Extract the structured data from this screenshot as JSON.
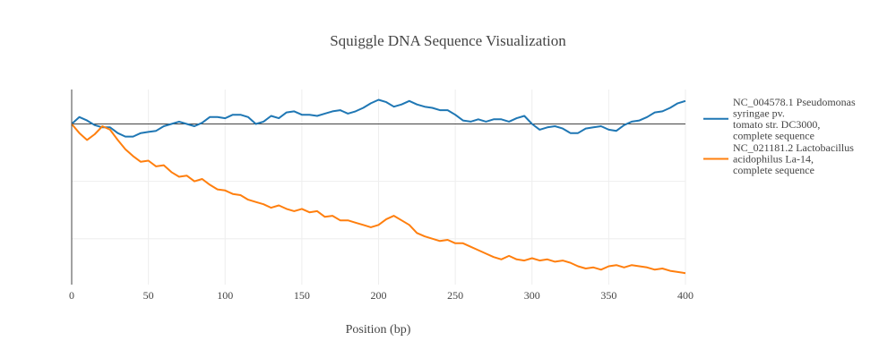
{
  "chart_data": {
    "type": "line",
    "title": "Squiggle DNA Sequence Visualization",
    "xlabel": "Position (bp)",
    "ylabel": "",
    "xlim": [
      0,
      400
    ],
    "ylim": [
      -140,
      30
    ],
    "x_ticks": [
      0,
      50,
      100,
      150,
      200,
      250,
      300,
      350,
      400
    ],
    "y_gridlines": [
      0,
      -50,
      -100
    ],
    "grid": true,
    "zero_line": true,
    "legend_position": "right",
    "series": [
      {
        "name": "NC_004578.1 Pseudomonas syringae pv. tomato str. DC3000, complete sequence",
        "legend_lines": [
          "NC_004578.1 Pseudomonas",
          "syringae pv.",
          "tomato str. DC3000,",
          "complete sequence"
        ],
        "color": "#1f77b4",
        "points": [
          [
            0,
            0
          ],
          [
            5,
            6
          ],
          [
            10,
            3
          ],
          [
            15,
            -1
          ],
          [
            20,
            -3
          ],
          [
            25,
            -3
          ],
          [
            30,
            -8
          ],
          [
            35,
            -11
          ],
          [
            40,
            -11
          ],
          [
            45,
            -8
          ],
          [
            50,
            -7
          ],
          [
            55,
            -6
          ],
          [
            60,
            -2
          ],
          [
            65,
            0
          ],
          [
            70,
            2
          ],
          [
            75,
            0
          ],
          [
            80,
            -2
          ],
          [
            85,
            1
          ],
          [
            90,
            6
          ],
          [
            95,
            6
          ],
          [
            100,
            5
          ],
          [
            105,
            8
          ],
          [
            110,
            8
          ],
          [
            115,
            6
          ],
          [
            120,
            0
          ],
          [
            125,
            2
          ],
          [
            130,
            7
          ],
          [
            135,
            5
          ],
          [
            140,
            10
          ],
          [
            145,
            11
          ],
          [
            150,
            8
          ],
          [
            155,
            8
          ],
          [
            160,
            7
          ],
          [
            165,
            9
          ],
          [
            170,
            11
          ],
          [
            175,
            12
          ],
          [
            180,
            9
          ],
          [
            185,
            11
          ],
          [
            190,
            14
          ],
          [
            195,
            18
          ],
          [
            200,
            21
          ],
          [
            205,
            19
          ],
          [
            210,
            15
          ],
          [
            215,
            17
          ],
          [
            220,
            20
          ],
          [
            225,
            17
          ],
          [
            230,
            15
          ],
          [
            235,
            14
          ],
          [
            240,
            12
          ],
          [
            245,
            12
          ],
          [
            250,
            8
          ],
          [
            255,
            3
          ],
          [
            260,
            2
          ],
          [
            265,
            4
          ],
          [
            270,
            2
          ],
          [
            275,
            4
          ],
          [
            280,
            4
          ],
          [
            285,
            2
          ],
          [
            290,
            5
          ],
          [
            295,
            7
          ],
          [
            300,
            0
          ],
          [
            305,
            -5
          ],
          [
            310,
            -3
          ],
          [
            315,
            -2
          ],
          [
            320,
            -4
          ],
          [
            325,
            -8
          ],
          [
            330,
            -8
          ],
          [
            335,
            -4
          ],
          [
            340,
            -3
          ],
          [
            345,
            -2
          ],
          [
            350,
            -5
          ],
          [
            355,
            -6
          ],
          [
            360,
            -1
          ],
          [
            365,
            2
          ],
          [
            370,
            3
          ],
          [
            375,
            6
          ],
          [
            380,
            10
          ],
          [
            385,
            11
          ],
          [
            390,
            14
          ],
          [
            395,
            18
          ],
          [
            400,
            20
          ]
        ]
      },
      {
        "name": "NC_021181.2 Lactobacillus acidophilus La-14, complete sequence",
        "legend_lines": [
          "NC_021181.2 Lactobacillus",
          "acidophilus La-14,",
          "complete sequence"
        ],
        "color": "#ff7f0e",
        "points": [
          [
            0,
            0
          ],
          [
            5,
            -8
          ],
          [
            10,
            -14
          ],
          [
            15,
            -9
          ],
          [
            20,
            -2
          ],
          [
            25,
            -5
          ],
          [
            30,
            -14
          ],
          [
            35,
            -22
          ],
          [
            40,
            -28
          ],
          [
            45,
            -33
          ],
          [
            50,
            -32
          ],
          [
            55,
            -37
          ],
          [
            60,
            -36
          ],
          [
            65,
            -42
          ],
          [
            70,
            -46
          ],
          [
            75,
            -45
          ],
          [
            80,
            -50
          ],
          [
            85,
            -48
          ],
          [
            90,
            -53
          ],
          [
            95,
            -57
          ],
          [
            100,
            -58
          ],
          [
            105,
            -61
          ],
          [
            110,
            -62
          ],
          [
            115,
            -66
          ],
          [
            120,
            -68
          ],
          [
            125,
            -70
          ],
          [
            130,
            -73
          ],
          [
            135,
            -71
          ],
          [
            140,
            -74
          ],
          [
            145,
            -76
          ],
          [
            150,
            -74
          ],
          [
            155,
            -77
          ],
          [
            160,
            -76
          ],
          [
            165,
            -81
          ],
          [
            170,
            -80
          ],
          [
            175,
            -84
          ],
          [
            180,
            -84
          ],
          [
            185,
            -86
          ],
          [
            190,
            -88
          ],
          [
            195,
            -90
          ],
          [
            200,
            -88
          ],
          [
            205,
            -83
          ],
          [
            210,
            -80
          ],
          [
            215,
            -84
          ],
          [
            220,
            -88
          ],
          [
            225,
            -95
          ],
          [
            230,
            -98
          ],
          [
            235,
            -100
          ],
          [
            240,
            -102
          ],
          [
            245,
            -101
          ],
          [
            250,
            -104
          ],
          [
            255,
            -104
          ],
          [
            260,
            -107
          ],
          [
            265,
            -110
          ],
          [
            270,
            -113
          ],
          [
            275,
            -116
          ],
          [
            280,
            -118
          ],
          [
            285,
            -115
          ],
          [
            290,
            -118
          ],
          [
            295,
            -119
          ],
          [
            300,
            -117
          ],
          [
            305,
            -119
          ],
          [
            310,
            -118
          ],
          [
            315,
            -120
          ],
          [
            320,
            -119
          ],
          [
            325,
            -121
          ],
          [
            330,
            -124
          ],
          [
            335,
            -126
          ],
          [
            340,
            -125
          ],
          [
            345,
            -127
          ],
          [
            350,
            -124
          ],
          [
            355,
            -123
          ],
          [
            360,
            -125
          ],
          [
            365,
            -123
          ],
          [
            370,
            -124
          ],
          [
            375,
            -125
          ],
          [
            380,
            -127
          ],
          [
            385,
            -126
          ],
          [
            390,
            -128
          ],
          [
            395,
            -129
          ],
          [
            400,
            -130
          ]
        ]
      }
    ]
  }
}
